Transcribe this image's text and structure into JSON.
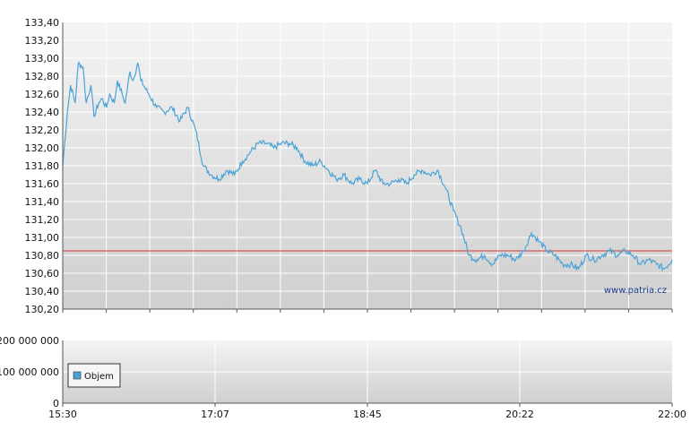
{
  "chart_data": [
    {
      "type": "line",
      "title": "",
      "xlabel": "",
      "ylabel": "",
      "ylim": [
        130.2,
        133.4
      ],
      "yticks": [
        "133,40",
        "133,20",
        "133,00",
        "132,80",
        "132,60",
        "132,40",
        "132,20",
        "132,00",
        "131,80",
        "131,60",
        "131,40",
        "131,20",
        "131,00",
        "130,80",
        "130,60",
        "130,40",
        "130,20"
      ],
      "reference_line": 130.85,
      "line_color": "#4aa3d6",
      "reference_color": "#d23a3a",
      "grid": true,
      "x_minutes": [
        0,
        3,
        5,
        8,
        10,
        13,
        15,
        18,
        20,
        23,
        25,
        28,
        30,
        33,
        35,
        38,
        40,
        43,
        45,
        48,
        50,
        55,
        60,
        65,
        70,
        75,
        80,
        85,
        90,
        95,
        100,
        105,
        110,
        115,
        120,
        125,
        130,
        135,
        140,
        145,
        150,
        155,
        160,
        165,
        170,
        175,
        180,
        185,
        190,
        195,
        200,
        205,
        210,
        215,
        220,
        225,
        230,
        235,
        240,
        245,
        250,
        255,
        260,
        265,
        270,
        275,
        280,
        285,
        290,
        295,
        300,
        305,
        310,
        315,
        320,
        325,
        330,
        335,
        340,
        345,
        350,
        355,
        360,
        365,
        370,
        375,
        380,
        385,
        390
      ],
      "values": [
        131.8,
        132.4,
        132.7,
        132.5,
        132.95,
        132.9,
        132.5,
        132.7,
        132.35,
        132.5,
        132.55,
        132.45,
        132.6,
        132.5,
        132.75,
        132.6,
        132.5,
        132.85,
        132.75,
        132.95,
        132.75,
        132.6,
        132.45,
        132.4,
        132.45,
        132.3,
        132.45,
        132.2,
        131.8,
        131.7,
        131.65,
        131.75,
        131.7,
        131.85,
        131.95,
        132.05,
        132.05,
        132.0,
        132.05,
        132.05,
        132.0,
        131.85,
        131.8,
        131.85,
        131.75,
        131.65,
        131.7,
        131.6,
        131.65,
        131.6,
        131.75,
        131.6,
        131.6,
        131.65,
        131.6,
        131.7,
        131.75,
        131.7,
        131.75,
        131.55,
        131.3,
        131.1,
        130.8,
        130.75,
        130.8,
        130.7,
        130.8,
        130.8,
        130.75,
        130.85,
        131.05,
        130.95,
        130.85,
        130.8,
        130.7,
        130.7,
        130.65,
        130.8,
        130.75,
        130.8,
        130.85,
        130.8,
        130.85,
        130.8,
        130.7,
        130.75,
        130.7,
        130.65,
        130.75
      ]
    },
    {
      "type": "bar",
      "title": "",
      "ylim": [
        0,
        200000000
      ],
      "yticks": [
        "200 000 000",
        "100 000 000",
        "0"
      ],
      "xticks": [
        "15:30",
        "17:07",
        "18:45",
        "20:22",
        "22:00"
      ],
      "legend": "Objem",
      "legend_color": "#4aa3d6",
      "values": []
    }
  ],
  "watermark": "www.patria.cz"
}
